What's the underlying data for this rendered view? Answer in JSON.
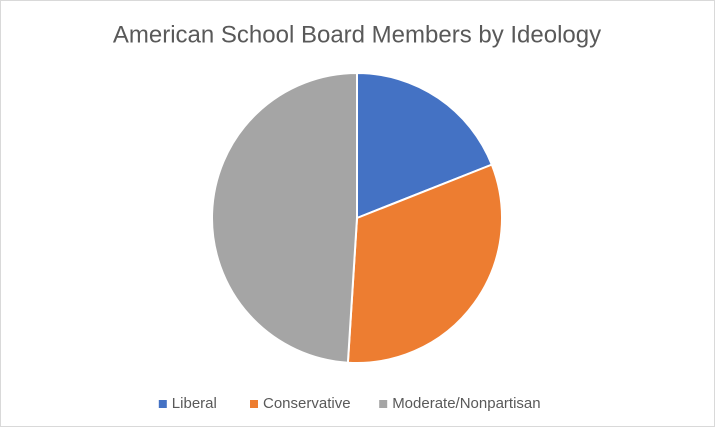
{
  "chart_data": {
    "type": "pie",
    "title": "American School Board Members by Ideology",
    "categories": [
      "Liberal",
      "Conservative",
      "Moderate/Nonpartisan"
    ],
    "values": [
      19,
      32,
      49
    ],
    "colors": [
      "#4472c4",
      "#ed7d31",
      "#a5a5a5"
    ],
    "legend": "bottom"
  }
}
